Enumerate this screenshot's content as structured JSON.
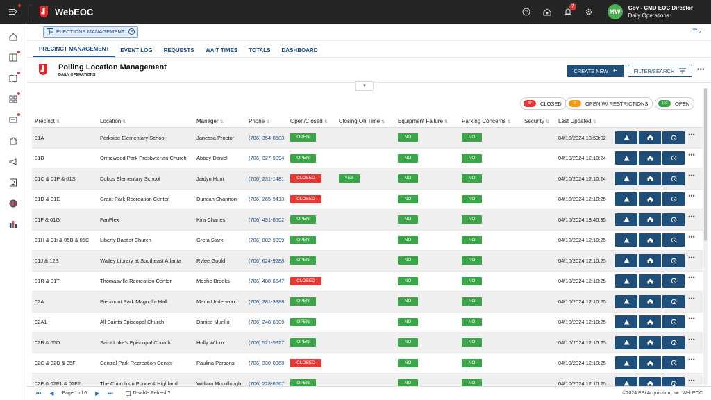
{
  "topbar": {
    "app_name": "WebEOC",
    "notifications_count": "7",
    "avatar_initials": "MW",
    "user_name": "Gov - CMD EOC Director",
    "user_role": "Daily Operations"
  },
  "tag": {
    "label": "ELECTIONS MANAGEMENT"
  },
  "tabs": [
    {
      "label": "PRECINCT MANAGEMENT"
    },
    {
      "label": "EVENT LOG"
    },
    {
      "label": "REQUESTS"
    },
    {
      "label": "WAIT TIMES"
    },
    {
      "label": "TOTALS"
    },
    {
      "label": "DASHBOARD"
    }
  ],
  "header": {
    "title": "Polling Location Management",
    "subtitle": "DAILY OPERATIONS",
    "create_label": "CREATE NEW",
    "filter_label": "FILTER/SEARCH"
  },
  "legend": {
    "closed_count": "37",
    "closed_label": "CLOSED",
    "restricted_count": "0",
    "restricted_label": "OPEN W/ RESTRICTIONS",
    "open_count": "110",
    "open_label": "OPEN"
  },
  "columns": {
    "precinct": "Precinct",
    "location": "Location",
    "manager": "Manager",
    "phone": "Phone",
    "open_closed": "Open/Closed",
    "closing_on_time": "Closing On Time",
    "equipment_failure": "Equipment Failure",
    "parking_concerns": "Parking Concerns",
    "security": "Security",
    "last_updated": "Last Updated"
  },
  "rows": [
    {
      "precinct": "01A",
      "location": "Parkside Elementary School",
      "manager": "Janessa Proctor",
      "phone": "(706) 354-0583",
      "status": "OPEN",
      "closing": "",
      "equip": "NO",
      "parking": "NO",
      "updated": "04/10/2024 13:53:02"
    },
    {
      "precinct": "01B",
      "location": "Ormewood Park Presbyterian Church",
      "manager": "Abbey Daniel",
      "phone": "(706) 327-9094",
      "status": "OPEN",
      "closing": "",
      "equip": "NO",
      "parking": "NO",
      "updated": "04/10/2024 12:10:24"
    },
    {
      "precinct": "01C & 01P & 01S",
      "location": "Dobbs Elementary School",
      "manager": "Jaidyn Hunt",
      "phone": "(706) 231-1481",
      "status": "CLOSED",
      "closing": "YES",
      "equip": "NO",
      "parking": "NO",
      "updated": "04/10/2024 12:10:24"
    },
    {
      "precinct": "01D & 01E",
      "location": "Grant Park Recreation Center",
      "manager": "Duncan Shannon",
      "phone": "(706) 265-9413",
      "status": "CLOSED",
      "closing": "",
      "equip": "NO",
      "parking": "NO",
      "updated": "04/10/2024 12:10:25"
    },
    {
      "precinct": "01F & 01G",
      "location": "FanPlex",
      "manager": "Kira Charles",
      "phone": "(706) 491-0502",
      "status": "OPEN",
      "closing": "",
      "equip": "NO",
      "parking": "NO",
      "updated": "04/10/2024 13:40:35"
    },
    {
      "precinct": "01H & 01i & 05B & 05C",
      "location": "Liberty Baptist Church",
      "manager": "Greta Stark",
      "phone": "(706) 882-9099",
      "status": "OPEN",
      "closing": "",
      "equip": "NO",
      "parking": "NO",
      "updated": "04/10/2024 12:10:25"
    },
    {
      "precinct": "01J & 12S",
      "location": "Watley Library at Southeast Atlanta",
      "manager": "Rylee Gould",
      "phone": "(706) 624-9288",
      "status": "OPEN",
      "closing": "",
      "equip": "NO",
      "parking": "NO",
      "updated": "04/10/2024 12:10:25"
    },
    {
      "precinct": "01R & 01T",
      "location": "Thomasville Recreation Center",
      "manager": "Moshe Brooks",
      "phone": "(706) 488-6547",
      "status": "CLOSED",
      "closing": "",
      "equip": "NO",
      "parking": "NO",
      "updated": "04/10/2024 12:10:25"
    },
    {
      "precinct": "02A",
      "location": "Piedmont Park Magnolia Hall",
      "manager": "Marin Underwood",
      "phone": "(706) 281-3888",
      "status": "OPEN",
      "closing": "",
      "equip": "NO",
      "parking": "NO",
      "updated": "04/10/2024 12:10:25"
    },
    {
      "precinct": "02A1",
      "location": "All Saints Episcopal Church",
      "manager": "Danica Murillo",
      "phone": "(706) 248-6009",
      "status": "OPEN",
      "closing": "",
      "equip": "NO",
      "parking": "NO",
      "updated": "04/10/2024 12:10:25"
    },
    {
      "precinct": "02B & 05D",
      "location": "Saint Luke's Episcopal Church",
      "manager": "Holly Wilcox",
      "phone": "(706) 521-5927",
      "status": "OPEN",
      "closing": "",
      "equip": "NO",
      "parking": "NO",
      "updated": "04/10/2024 12:10:25"
    },
    {
      "precinct": "02C & 02D & 05F",
      "location": "Central Park Recreation Center",
      "manager": "Paulina Parsons",
      "phone": "(706) 330-0368",
      "status": "CLOSED",
      "closing": "",
      "equip": "NO",
      "parking": "NO",
      "updated": "04/10/2024 12:10:25"
    },
    {
      "precinct": "02E & 02F1 & 02F2",
      "location": "The Church on Ponce & Highland",
      "manager": "William Mccullough",
      "phone": "(706) 228-6667",
      "status": "OPEN",
      "closing": "",
      "equip": "NO",
      "parking": "NO",
      "updated": "04/10/2024 12:10:25"
    }
  ],
  "pager": {
    "page_text": "Page 1 of 6",
    "disable_refresh": "Disable Refresh?",
    "copyright": "©2024 ESi Acquisition, Inc. WebEOC"
  },
  "colors": {
    "brand_dark": "#1f4e79",
    "open": "#3aa648",
    "closed": "#e53935",
    "restricted": "#f39c12"
  }
}
